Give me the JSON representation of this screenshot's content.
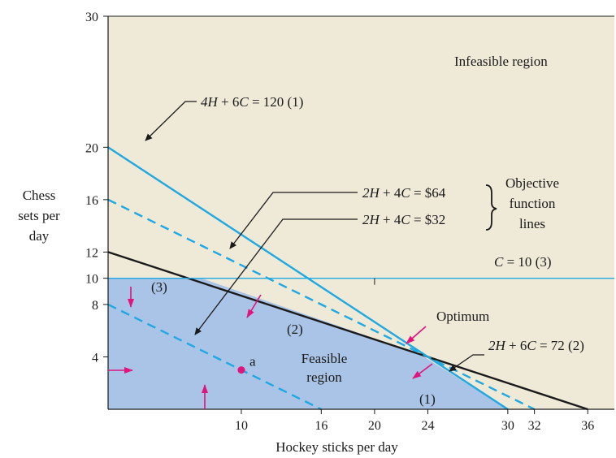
{
  "chart_data": {
    "type": "line",
    "xlabel": "Hockey sticks per day",
    "ylabel": [
      "Chess",
      "sets per",
      "day"
    ],
    "xlim": [
      0,
      38
    ],
    "ylim": [
      0,
      30
    ],
    "x_ticks": [
      10,
      16,
      20,
      24,
      30,
      32,
      36
    ],
    "y_ticks": [
      4,
      8,
      10,
      12,
      16,
      20,
      30
    ],
    "colors": {
      "background": "#efe9d8",
      "feasible": "#a9c4e6",
      "constraint_blue": "#1fa8e1",
      "constraint_black": "#1a1a1a",
      "arrow_magenta": "#e0147d"
    },
    "regions": {
      "infeasible_label": "Infeasible region",
      "feasible_label": [
        "Feasible",
        "region"
      ],
      "feasible_polygon": [
        [
          0,
          10
        ],
        [
          7,
          10
        ],
        [
          23.4,
          4.2
        ],
        [
          30,
          0
        ],
        [
          0,
          0
        ]
      ]
    },
    "series": [
      {
        "name": "4H + 6C = 120 (1)",
        "style": "solid",
        "color": "#1fa8e1",
        "x": [
          0,
          30
        ],
        "y": [
          20,
          0
        ]
      },
      {
        "name": "2H + 6C = 72 (2)",
        "style": "solid",
        "color": "#1a1a1a",
        "x": [
          0,
          36
        ],
        "y": [
          12,
          0
        ]
      },
      {
        "name": "C = 10 (3)",
        "style": "thin",
        "color": "#1fa8e1",
        "x": [
          0,
          38
        ],
        "y": [
          10,
          10
        ]
      },
      {
        "name": "2H + 4C = $64",
        "style": "dashed",
        "color": "#1fa8e1",
        "x": [
          0,
          32
        ],
        "y": [
          16,
          0
        ]
      },
      {
        "name": "2H + 4C = $32",
        "style": "dashed",
        "color": "#1fa8e1",
        "x": [
          0,
          16
        ],
        "y": [
          8,
          0
        ]
      }
    ],
    "points": [
      {
        "label": "a",
        "x": 10,
        "y": 3
      }
    ],
    "annotations": {
      "eq1": {
        "left": "4H",
        "mid": " + 6",
        "var": "C",
        "right": " = 120 (1)"
      },
      "eq2": {
        "left": "2H",
        "mid": " + 6",
        "var": "C",
        "right": " = 72 (2)"
      },
      "eq3": {
        "var": "C",
        "right": " = 10 (3)"
      },
      "obj64": {
        "left": "2H",
        "mid": " + 4",
        "var": "C",
        "right": " = $64"
      },
      "obj32": {
        "left": "2H",
        "mid": " + 4",
        "var": "C",
        "right": " = $32"
      },
      "objective_label": [
        "Objective",
        "function",
        "lines"
      ],
      "optimum": "Optimum",
      "marker1": "(1)",
      "marker2": "(2)",
      "marker3": "(3)"
    }
  }
}
